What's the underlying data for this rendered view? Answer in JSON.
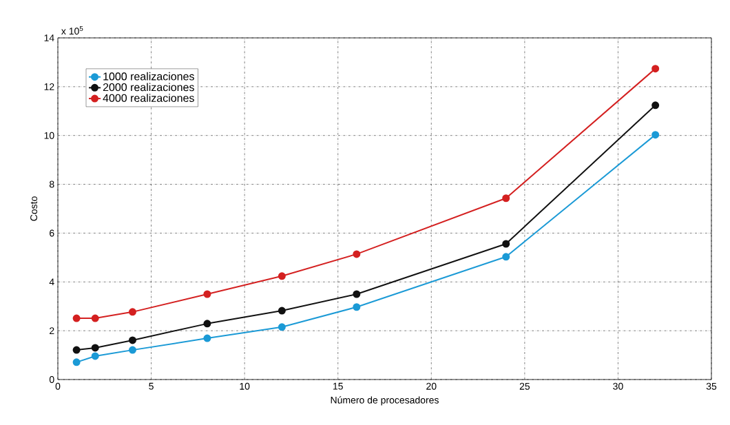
{
  "chart_data": {
    "type": "line",
    "xlabel": "Número de procesadores",
    "ylabel": "Costo",
    "annotations": [
      "x 10$^{5}$"
    ],
    "x": [
      1,
      2,
      4,
      8,
      12,
      16,
      24,
      32
    ],
    "series": [
      {
        "name": "1000 realizaciones",
        "color": "#1b9ad6",
        "values": [
          0.71,
          0.96,
          1.21,
          1.69,
          2.15,
          2.97,
          5.03,
          10.03
        ]
      },
      {
        "name": "2000 realizaciones",
        "color": "#111111",
        "values": [
          1.21,
          1.3,
          1.61,
          2.29,
          2.82,
          3.5,
          5.56,
          11.24
        ]
      },
      {
        "name": "4000 realizaciones",
        "color": "#d42020",
        "values": [
          2.51,
          2.51,
          2.77,
          3.5,
          4.24,
          5.14,
          7.43,
          12.74
        ]
      }
    ],
    "xlim": [
      0,
      35
    ],
    "ylim": [
      0,
      14
    ],
    "xticks": [
      0,
      5,
      10,
      15,
      20,
      25,
      30,
      35
    ],
    "yticks": [
      0,
      2,
      4,
      6,
      8,
      10,
      12,
      14
    ],
    "grid": true,
    "legend": "top left",
    "marker": "circle",
    "line_style": "solid"
  }
}
